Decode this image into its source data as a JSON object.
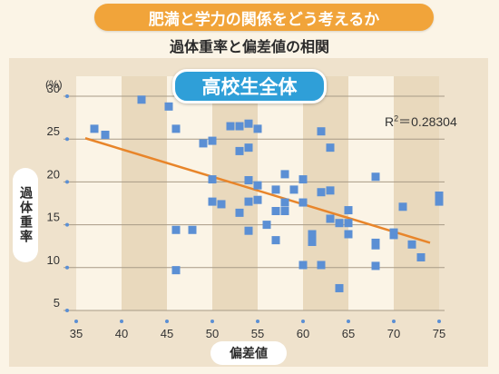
{
  "header": {
    "banner": "肥満と学力の関係をどう考えるか",
    "subtitle": "過体重率と偏差値の相関"
  },
  "chart_data": {
    "type": "scatter",
    "title": "高校生全体",
    "xlabel": "偏差値",
    "ylabel": "過体重率",
    "y_unit": "(%)",
    "annotation": {
      "r2_prefix": "R",
      "r2_sup": "2",
      "r2_value": "＝0.28304"
    },
    "xlim": [
      35,
      75
    ],
    "ylim": [
      5,
      30
    ],
    "x_ticks": [
      35,
      40,
      45,
      50,
      55,
      60,
      65,
      70,
      75
    ],
    "y_ticks": [
      5,
      10,
      15,
      20,
      25,
      30
    ],
    "grid": true,
    "trendline": {
      "x": [
        36,
        74
      ],
      "y": [
        25.1,
        12.9
      ],
      "color": "#e8852a"
    },
    "point_color": "#5b8fd4",
    "points": [
      {
        "x": 37.0,
        "y": 26.2
      },
      {
        "x": 38.2,
        "y": 25.5
      },
      {
        "x": 42.2,
        "y": 29.6
      },
      {
        "x": 45.2,
        "y": 28.8
      },
      {
        "x": 46.0,
        "y": 26.2
      },
      {
        "x": 46.0,
        "y": 14.4
      },
      {
        "x": 46.0,
        "y": 9.7
      },
      {
        "x": 47.8,
        "y": 14.4
      },
      {
        "x": 49.0,
        "y": 24.5
      },
      {
        "x": 50.0,
        "y": 24.8
      },
      {
        "x": 50.0,
        "y": 20.3
      },
      {
        "x": 50.0,
        "y": 17.7
      },
      {
        "x": 51.0,
        "y": 17.4
      },
      {
        "x": 52.0,
        "y": 26.5
      },
      {
        "x": 53.0,
        "y": 26.5
      },
      {
        "x": 53.0,
        "y": 23.6
      },
      {
        "x": 53.0,
        "y": 16.4
      },
      {
        "x": 54.0,
        "y": 26.8
      },
      {
        "x": 54.0,
        "y": 24.0
      },
      {
        "x": 54.0,
        "y": 20.2
      },
      {
        "x": 54.0,
        "y": 17.7
      },
      {
        "x": 54.0,
        "y": 14.3
      },
      {
        "x": 55.0,
        "y": 26.2
      },
      {
        "x": 55.0,
        "y": 19.6
      },
      {
        "x": 55.0,
        "y": 17.9
      },
      {
        "x": 56.0,
        "y": 15.0
      },
      {
        "x": 57.0,
        "y": 19.1
      },
      {
        "x": 57.0,
        "y": 16.6
      },
      {
        "x": 57.0,
        "y": 13.2
      },
      {
        "x": 58.0,
        "y": 20.9
      },
      {
        "x": 58.0,
        "y": 17.6
      },
      {
        "x": 58.0,
        "y": 16.6
      },
      {
        "x": 59.0,
        "y": 19.1
      },
      {
        "x": 60.0,
        "y": 20.3
      },
      {
        "x": 60.0,
        "y": 17.6
      },
      {
        "x": 60.0,
        "y": 10.3
      },
      {
        "x": 61.0,
        "y": 13.9
      },
      {
        "x": 61.0,
        "y": 13.0
      },
      {
        "x": 62.0,
        "y": 25.9
      },
      {
        "x": 62.0,
        "y": 18.8
      },
      {
        "x": 62.0,
        "y": 10.3
      },
      {
        "x": 63.0,
        "y": 24.0
      },
      {
        "x": 63.0,
        "y": 19.0
      },
      {
        "x": 63.0,
        "y": 15.7
      },
      {
        "x": 64.0,
        "y": 15.2
      },
      {
        "x": 64.0,
        "y": 7.6
      },
      {
        "x": 65.0,
        "y": 16.7
      },
      {
        "x": 65.0,
        "y": 15.2
      },
      {
        "x": 65.0,
        "y": 13.9
      },
      {
        "x": 68.0,
        "y": 20.6
      },
      {
        "x": 68.0,
        "y": 12.9
      },
      {
        "x": 68.0,
        "y": 12.6
      },
      {
        "x": 68.0,
        "y": 10.2
      },
      {
        "x": 70.0,
        "y": 14.1
      },
      {
        "x": 70.0,
        "y": 13.8
      },
      {
        "x": 71.0,
        "y": 17.1
      },
      {
        "x": 72.0,
        "y": 12.7
      },
      {
        "x": 73.0,
        "y": 11.2
      },
      {
        "x": 75.0,
        "y": 18.4
      },
      {
        "x": 75.0,
        "y": 17.7
      }
    ]
  }
}
